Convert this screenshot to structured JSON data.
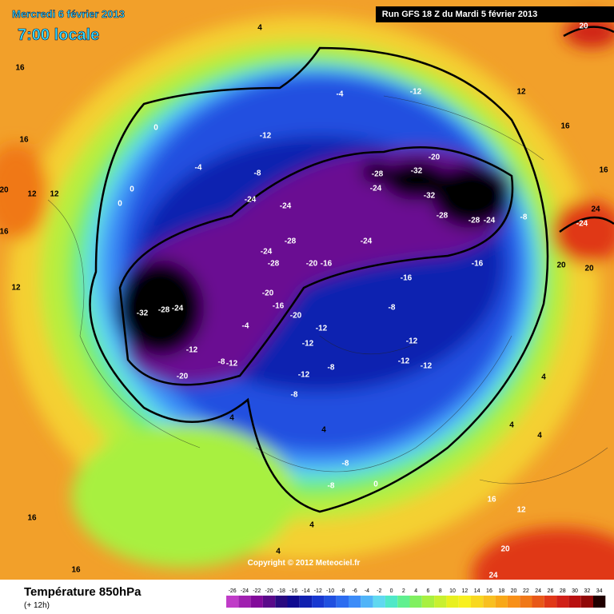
{
  "header": {
    "date": "Mercredi 6 février 2013",
    "time": "7:00 locale",
    "run": "Run GFS 18 Z du Mardi 5 février 2013",
    "copyright": "Copyright © 2012 Meteociel.fr"
  },
  "footer": {
    "title": "Température 850hPa",
    "lead": "(+ 12h)"
  },
  "colorbar": {
    "ticks": [
      -26,
      -24,
      -22,
      -20,
      -18,
      -16,
      -14,
      -12,
      -10,
      -8,
      -6,
      -4,
      -2,
      0,
      2,
      4,
      6,
      8,
      10,
      12,
      14,
      16,
      18,
      20,
      22,
      24,
      26,
      28,
      30,
      32,
      34
    ],
    "colors": [
      "#c03cc8",
      "#a020b0",
      "#820a9a",
      "#5a0a8a",
      "#2a0a80",
      "#100a90",
      "#1020b0",
      "#1838d0",
      "#2050e0",
      "#2c6cf0",
      "#3c8cf8",
      "#50b4f8",
      "#60d8f0",
      "#50e8c8",
      "#60f090",
      "#80f060",
      "#a8f040",
      "#c8f030",
      "#e8f020",
      "#f8f020",
      "#f8d820",
      "#f8c020",
      "#f8a818",
      "#f89018",
      "#f07818",
      "#e85818",
      "#e03818",
      "#d02018",
      "#b81010",
      "#900808",
      "#200000"
    ]
  },
  "map_labels": [
    4,
    16,
    16,
    20,
    12,
    12,
    16,
    12,
    0,
    -4,
    0,
    0,
    -12,
    -8,
    -24,
    -24,
    -4,
    -12,
    12,
    16,
    16,
    -20,
    -28,
    -32,
    -24,
    -32,
    -28,
    -28,
    -24,
    -8,
    24,
    -24,
    -28,
    -24,
    -28,
    -20,
    -16,
    -24,
    -16,
    -16,
    -32,
    -28,
    -24,
    -20,
    -16,
    -20,
    -12,
    -20,
    -12,
    -12,
    -8,
    -12,
    -12,
    -12,
    -8,
    -12,
    -8,
    -4,
    -8,
    -12,
    4,
    4,
    -8,
    -8,
    0,
    4,
    4,
    16,
    16,
    12,
    16,
    20,
    24,
    20,
    20,
    20,
    4,
    4,
    4
  ]
}
